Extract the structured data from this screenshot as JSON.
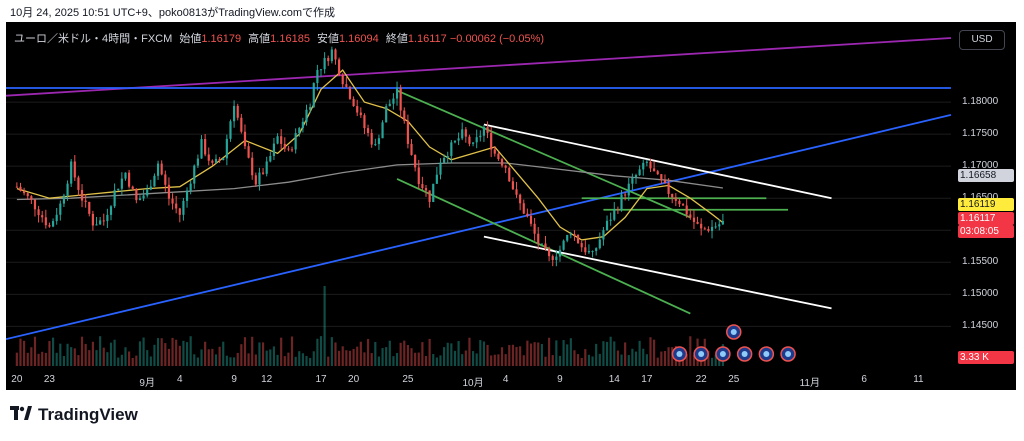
{
  "header_caption": "10月 24, 2025 10:51 UTC+9、poko0813がTradingView.comで作成",
  "legend": {
    "symbol": "ユーロ／米ドル・4時間・FXCM",
    "open_label": "始値",
    "open": "1.16179",
    "high_label": "高値",
    "high": "1.16185",
    "low_label": "安値",
    "low": "1.16094",
    "close_label": "終値",
    "close": "1.16117",
    "change": "−0.00062 (−0.05%)"
  },
  "currency_button": "USD",
  "price_labels": {
    "ma_value": "1.16658",
    "yellow_value": "1.16119",
    "current_price": "1.16117",
    "countdown": "03:08:05",
    "volume": "3.33 K"
  },
  "colors": {
    "background": "#000000",
    "up_candle": "#26a69a",
    "down_candle": "#ef5350",
    "ma_fast": "#e0c14a",
    "ma_slow": "#8c8c8c",
    "trendline_blue": "#2962ff",
    "trendline_purple": "#9c27b0",
    "channel_green": "#4caf50",
    "channel_white": "#ffffff",
    "price_label_red": "#f23645",
    "price_label_yellow": "#ffeb3b",
    "price_label_gray": "#d1d4dc"
  },
  "chart_data": {
    "type": "candlestick",
    "symbol": "EUR/USD",
    "timeframe": "4h",
    "y_ticks": [
      "1.18000",
      "1.17500",
      "1.17000",
      "1.16500",
      "1.16000",
      "1.15500",
      "1.15000",
      "1.14500"
    ],
    "ylim": [
      1.141,
      1.1925
    ],
    "x_ticks": [
      {
        "label": "20",
        "day": 0
      },
      {
        "label": "23",
        "day": 3
      },
      {
        "label": "9月",
        "day": 12
      },
      {
        "label": "4",
        "day": 15
      },
      {
        "label": "9",
        "day": 20
      },
      {
        "label": "12",
        "day": 23
      },
      {
        "label": "17",
        "day": 28
      },
      {
        "label": "20",
        "day": 31
      },
      {
        "label": "25",
        "day": 36
      },
      {
        "label": "10月",
        "day": 42
      },
      {
        "label": "4",
        "day": 45
      },
      {
        "label": "9",
        "day": 50
      },
      {
        "label": "14",
        "day": 55
      },
      {
        "label": "17",
        "day": 58
      },
      {
        "label": "22",
        "day": 63
      },
      {
        "label": "25",
        "day": 66
      },
      {
        "label": "11月",
        "day": 73
      },
      {
        "label": "6",
        "day": 78
      },
      {
        "label": "11",
        "day": 83
      }
    ],
    "xlim": [
      -1,
      86
    ],
    "close_path": [
      [
        0,
        1.1668
      ],
      [
        1.5,
        1.1642
      ],
      [
        3,
        1.1605
      ],
      [
        4,
        1.164
      ],
      [
        5,
        1.17
      ],
      [
        6,
        1.165
      ],
      [
        7,
        1.1612
      ],
      [
        8,
        1.1615
      ],
      [
        9,
        1.166
      ],
      [
        10,
        1.169
      ],
      [
        11,
        1.1645
      ],
      [
        12,
        1.166
      ],
      [
        13,
        1.1705
      ],
      [
        14,
        1.165
      ],
      [
        15,
        1.1625
      ],
      [
        16,
        1.168
      ],
      [
        17,
        1.1735
      ],
      [
        18,
        1.17
      ],
      [
        19,
        1.1715
      ],
      [
        20,
        1.18
      ],
      [
        21,
        1.1725
      ],
      [
        22,
        1.1675
      ],
      [
        23,
        1.17
      ],
      [
        24,
        1.1745
      ],
      [
        25,
        1.172
      ],
      [
        26,
        1.176
      ],
      [
        27,
        1.18
      ],
      [
        27.6,
        1.185
      ],
      [
        28.2,
        1.186
      ],
      [
        29,
        1.188
      ],
      [
        30,
        1.1835
      ],
      [
        31,
        1.18
      ],
      [
        32,
        1.176
      ],
      [
        33,
        1.173
      ],
      [
        34,
        1.179
      ],
      [
        35,
        1.1815
      ],
      [
        36,
        1.174
      ],
      [
        37,
        1.168
      ],
      [
        38,
        1.165
      ],
      [
        39,
        1.171
      ],
      [
        40,
        1.173
      ],
      [
        41,
        1.175
      ],
      [
        42,
        1.173
      ],
      [
        43,
        1.176
      ],
      [
        44,
        1.172
      ],
      [
        45,
        1.17
      ],
      [
        46,
        1.165
      ],
      [
        47,
        1.162
      ],
      [
        48,
        1.158
      ],
      [
        49,
        1.1555
      ],
      [
        50,
        1.157
      ],
      [
        51,
        1.16
      ],
      [
        52,
        1.1575
      ],
      [
        53,
        1.156
      ],
      [
        54,
        1.16
      ],
      [
        55,
        1.163
      ],
      [
        56,
        1.166
      ],
      [
        57,
        1.1685
      ],
      [
        58,
        1.1705
      ],
      [
        59,
        1.168
      ],
      [
        60,
        1.166
      ],
      [
        61,
        1.1645
      ],
      [
        62,
        1.162
      ],
      [
        63,
        1.16
      ],
      [
        64,
        1.1605
      ],
      [
        65,
        1.1612
      ]
    ],
    "ma_fast": [
      [
        0,
        1.1665
      ],
      [
        3,
        1.165
      ],
      [
        6,
        1.1655
      ],
      [
        9,
        1.166
      ],
      [
        12,
        1.1665
      ],
      [
        15,
        1.1668
      ],
      [
        18,
        1.17
      ],
      [
        21,
        1.174
      ],
      [
        24,
        1.172
      ],
      [
        26,
        1.175
      ],
      [
        28,
        1.182
      ],
      [
        30,
        1.185
      ],
      [
        32,
        1.18
      ],
      [
        34,
        1.179
      ],
      [
        36,
        1.177
      ],
      [
        38,
        1.173
      ],
      [
        40,
        1.171
      ],
      [
        42,
        1.172
      ],
      [
        44,
        1.173
      ],
      [
        46,
        1.169
      ],
      [
        48,
        1.165
      ],
      [
        50,
        1.1605
      ],
      [
        52,
        1.1585
      ],
      [
        54,
        1.159
      ],
      [
        56,
        1.162
      ],
      [
        58,
        1.1665
      ],
      [
        60,
        1.167
      ],
      [
        62,
        1.165
      ],
      [
        64,
        1.1625
      ],
      [
        65,
        1.1612
      ]
    ],
    "ma_slow": [
      [
        0,
        1.1648
      ],
      [
        5,
        1.165
      ],
      [
        10,
        1.1655
      ],
      [
        15,
        1.166
      ],
      [
        20,
        1.1665
      ],
      [
        25,
        1.1675
      ],
      [
        30,
        1.169
      ],
      [
        35,
        1.1702
      ],
      [
        40,
        1.1705
      ],
      [
        45,
        1.1705
      ],
      [
        50,
        1.1695
      ],
      [
        55,
        1.1685
      ],
      [
        60,
        1.1678
      ],
      [
        65,
        1.1666
      ]
    ],
    "trendlines": [
      {
        "name": "purple_rising",
        "color": "purple",
        "from": [
          -1,
          1.181
        ],
        "to": [
          86,
          1.19
        ]
      },
      {
        "name": "blue_horizontal",
        "color": "blue",
        "from": [
          -1,
          1.1822
        ],
        "to": [
          86,
          1.1822
        ]
      },
      {
        "name": "blue_rising",
        "color": "blue",
        "from": [
          -1,
          1.143
        ],
        "to": [
          86,
          1.178
        ]
      },
      {
        "name": "green_upper",
        "color": "green",
        "from": [
          35,
          1.1818
        ],
        "to": [
          62,
          1.162
        ]
      },
      {
        "name": "green_lower",
        "color": "green",
        "from": [
          35,
          1.168
        ],
        "to": [
          62,
          1.147
        ]
      },
      {
        "name": "white_upper",
        "color": "white",
        "from": [
          43,
          1.1765
        ],
        "to": [
          75,
          1.165
        ]
      },
      {
        "name": "white_lower",
        "color": "white",
        "from": [
          43,
          1.159
        ],
        "to": [
          75,
          1.1478
        ]
      },
      {
        "name": "green_level_high",
        "color": "green",
        "from": [
          52,
          1.165
        ],
        "to": [
          69,
          1.165
        ]
      },
      {
        "name": "green_level_low",
        "color": "green",
        "from": [
          54,
          1.1632
        ],
        "to": [
          71,
          1.1632
        ]
      }
    ],
    "last_price": 1.16117,
    "volume_last": "3.33 K"
  }
}
